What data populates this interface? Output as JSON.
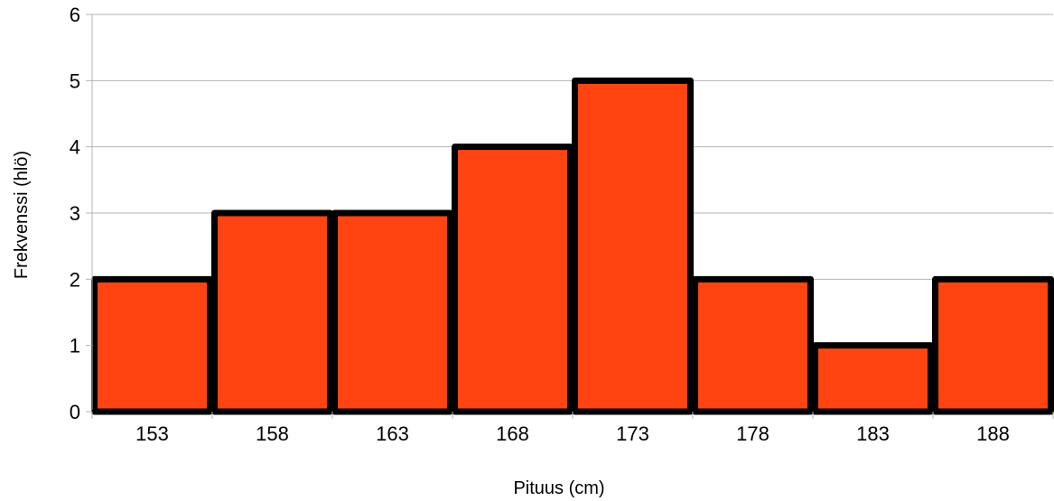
{
  "chart_data": {
    "type": "bar",
    "title": "",
    "xlabel": "Pituus (cm)",
    "ylabel": "Frekvenssi (hlö)",
    "categories": [
      "153",
      "158",
      "163",
      "168",
      "173",
      "178",
      "183",
      "188"
    ],
    "values": [
      2,
      3,
      3,
      4,
      5,
      2,
      1,
      2
    ],
    "ylim": [
      0,
      6
    ],
    "yticks": [
      "0",
      "1",
      "2",
      "3",
      "4",
      "5",
      "6"
    ],
    "grid": true,
    "legend": "none",
    "bar_color": "#ff4411",
    "bar_outline_color": "#000000",
    "grid_color": "#b3b3b3"
  }
}
